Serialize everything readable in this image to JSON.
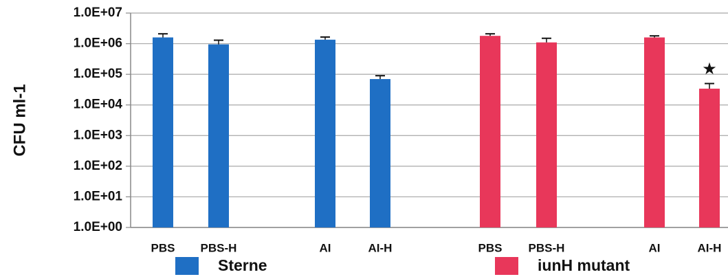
{
  "chart_data": {
    "type": "bar",
    "y_label": "CFU ml-1",
    "categories": [
      "PBS",
      "PBS-H",
      "AI",
      "AI-H",
      "PBS",
      "PBS-H",
      "AI",
      "AI-H"
    ],
    "series": [
      {
        "name": "Sterne",
        "color": "#1f6fc4",
        "values": [
          1600000,
          950000,
          1350000,
          70000,
          null,
          null,
          null,
          null
        ],
        "errors": [
          500000,
          350000,
          300000,
          20000,
          null,
          null,
          null,
          null
        ]
      },
      {
        "name": "iunH mutant",
        "color": "#e8375a",
        "values": [
          null,
          null,
          null,
          null,
          1800000,
          1100000,
          1600000,
          34000
        ],
        "errors": [
          null,
          null,
          null,
          null,
          300000,
          400000,
          200000,
          16000
        ]
      }
    ],
    "annotations": [
      {
        "text": "★",
        "category": 7,
        "series": 1
      }
    ],
    "log_scale": true,
    "ylim": [
      1,
      10000000
    ],
    "yticks": [
      {
        "value": 1,
        "label": "1.0E+00"
      },
      {
        "value": 10,
        "label": "1.0E+01"
      },
      {
        "value": 100,
        "label": "1.0E+02"
      },
      {
        "value": 1000,
        "label": "1.0E+03"
      },
      {
        "value": 10000,
        "label": "1.0E+04"
      },
      {
        "value": 100000,
        "label": "1.0E+05"
      },
      {
        "value": 1000000,
        "label": "1.0E+06"
      },
      {
        "value": 10000000,
        "label": "1.0E+07"
      }
    ],
    "grid": true,
    "legend": "bottom"
  }
}
